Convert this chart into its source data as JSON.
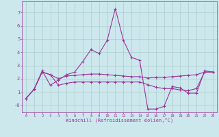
{
  "xlabel": "Windchill (Refroidissement éolien,°C)",
  "bg_color": "#cce8ed",
  "grid_color": "#aacccc",
  "line_color": "#993399",
  "hours": [
    0,
    1,
    2,
    3,
    4,
    5,
    6,
    7,
    8,
    9,
    10,
    11,
    12,
    13,
    14,
    15,
    16,
    17,
    18,
    19,
    20,
    21,
    22,
    23
  ],
  "line1": [
    0.5,
    1.2,
    2.6,
    1.5,
    1.9,
    2.3,
    2.5,
    3.3,
    4.2,
    3.9,
    4.9,
    7.3,
    4.9,
    3.6,
    3.4,
    -0.3,
    -0.3,
    -0.1,
    1.4,
    1.3,
    0.9,
    0.9,
    2.6,
    2.5
  ],
  "line2": [
    0.5,
    1.2,
    2.5,
    2.3,
    2.0,
    2.2,
    2.25,
    2.3,
    2.35,
    2.35,
    2.3,
    2.25,
    2.2,
    2.15,
    2.15,
    2.05,
    2.1,
    2.1,
    2.15,
    2.2,
    2.25,
    2.3,
    2.5,
    2.5
  ],
  "line3": [
    0.5,
    1.2,
    2.5,
    2.3,
    1.5,
    1.65,
    1.75,
    1.75,
    1.75,
    1.75,
    1.75,
    1.75,
    1.75,
    1.75,
    1.75,
    1.55,
    1.35,
    1.25,
    1.25,
    1.15,
    1.1,
    1.25,
    2.5,
    2.5
  ],
  "ylim": [
    -0.55,
    7.85
  ],
  "yticks": [
    0,
    1,
    2,
    3,
    4,
    5,
    6,
    7
  ],
  "xlim": [
    -0.5,
    23.5
  ]
}
